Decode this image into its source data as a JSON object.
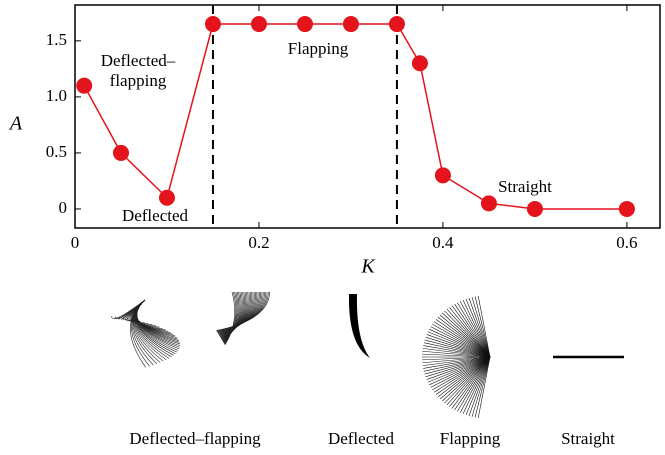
{
  "chart_data": {
    "type": "line",
    "x_label": "K",
    "y_label": "A",
    "x": [
      0.01,
      0.05,
      0.1,
      0.15,
      0.2,
      0.25,
      0.3,
      0.35,
      0.375,
      0.4,
      0.45,
      0.5,
      0.6
    ],
    "series": [
      {
        "name": "A",
        "color": "#e3141c",
        "values": [
          1.1,
          0.5,
          0.1,
          1.65,
          1.65,
          1.65,
          1.65,
          1.65,
          1.3,
          0.3,
          0.05,
          0,
          0
        ]
      }
    ],
    "xlim": [
      0,
      0.636
    ],
    "ylim": [
      -0.17,
      1.82
    ],
    "xticks": [
      0,
      0.2,
      0.4,
      0.6
    ],
    "yticks": [
      0,
      0.5,
      {
        "value": 1.0,
        "label": "1.0"
      },
      1.5
    ],
    "regime_boundaries": [
      0.15,
      0.35
    ],
    "annotations": [
      "Deflected–",
      "flapping",
      "Deflected",
      "Flapping",
      "Straight"
    ]
  },
  "illustration_labels": [
    "Deflected–flapping",
    "Deflected",
    "Flapping",
    "Straight"
  ]
}
